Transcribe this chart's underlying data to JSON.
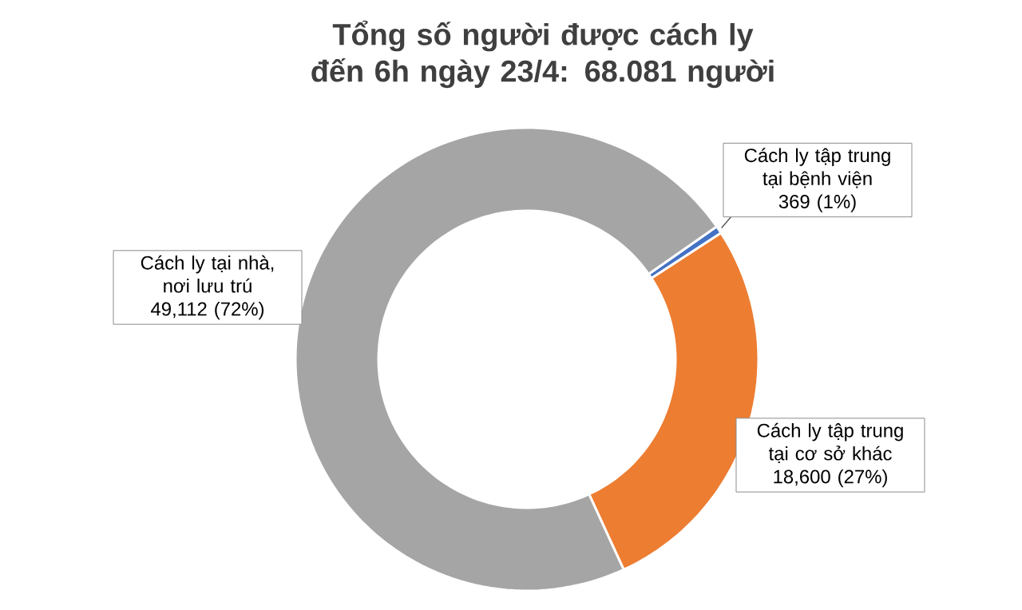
{
  "chart_data": {
    "type": "donut",
    "title": "Tổng số người được cách ly đến 6h ngày 23/4: 68.081 người",
    "categories": [
      "Cách ly tập trung tại bệnh viện",
      "Cách ly tập trung tại cơ sở khác",
      "Cách ly tại nhà, nơi lưu trú"
    ],
    "values": [
      369,
      18600,
      49112
    ],
    "value_labels": [
      "369  (1%)",
      "18,600  (27%)",
      "49,112  (72%)"
    ],
    "colors": [
      "#4472c4",
      "#ed7d31",
      "#a5a5a5"
    ]
  }
}
